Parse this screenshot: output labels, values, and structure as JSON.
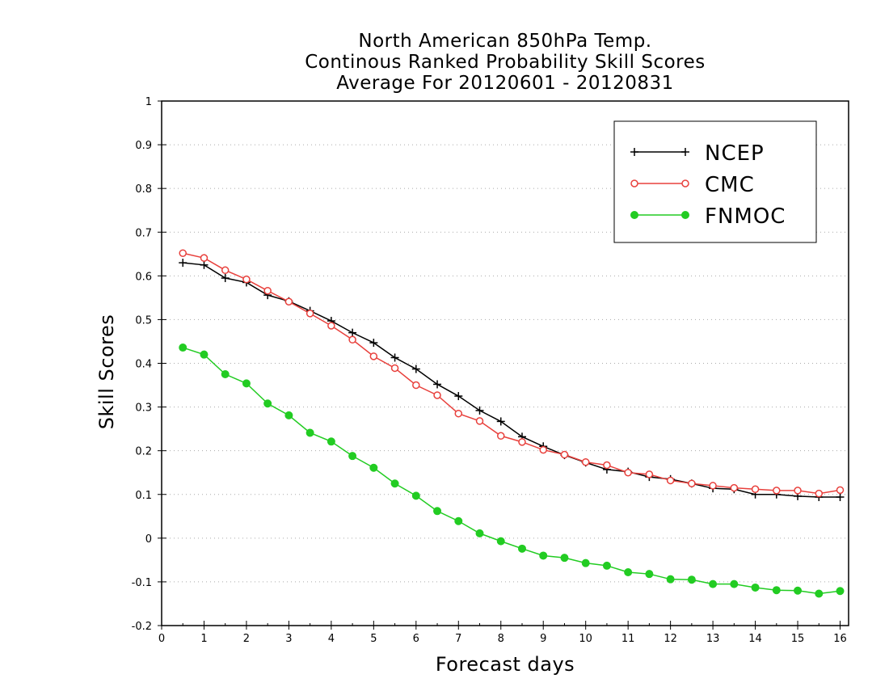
{
  "chart_data": {
    "type": "line",
    "title_lines": [
      "North American 850hPa Temp.",
      "Continous Ranked Probability Skill Scores",
      "Average For 20120601 - 20120831"
    ],
    "xlabel": "Forecast days",
    "ylabel": "Skill Scores",
    "xlim": [
      0,
      16.2
    ],
    "ylim": [
      -0.2,
      1
    ],
    "xticks": [
      0,
      1,
      2,
      3,
      4,
      5,
      6,
      7,
      8,
      9,
      10,
      11,
      12,
      13,
      14,
      15,
      16
    ],
    "yticks": [
      -0.2,
      -0.1,
      0,
      0.1,
      0.2,
      0.3,
      0.4,
      0.5,
      0.6,
      0.7,
      0.8,
      0.9,
      1
    ],
    "ytick_labels": [
      "-0.2",
      "-0.1",
      "0",
      "0.1",
      "0.2",
      "0.3",
      "0.4",
      "0.5",
      "0.6",
      "0.7",
      "0.8",
      "0.9",
      "1"
    ],
    "grid": "horizontal dotted",
    "legend_position": "top-right",
    "x": [
      0.5,
      1,
      1.5,
      2,
      2.5,
      3,
      3.5,
      4,
      4.5,
      5,
      5.5,
      6,
      6.5,
      7,
      7.5,
      8,
      8.5,
      9,
      9.5,
      10,
      10.5,
      11,
      11.5,
      12,
      12.5,
      13,
      13.5,
      14,
      14.5,
      15,
      15.5,
      16
    ],
    "series": [
      {
        "name": "NCEP",
        "color": "#000000",
        "marker": "plus",
        "values": [
          0.63,
          0.625,
          0.595,
          0.585,
          0.556,
          0.542,
          0.52,
          0.497,
          0.47,
          0.447,
          0.413,
          0.387,
          0.352,
          0.325,
          0.292,
          0.267,
          0.232,
          0.21,
          0.19,
          0.173,
          0.157,
          0.152,
          0.14,
          0.135,
          0.125,
          0.114,
          0.112,
          0.1,
          0.1,
          0.096,
          0.094,
          0.094
        ]
      },
      {
        "name": "CMC",
        "color": "#e8403c",
        "marker": "open-circle",
        "values": [
          0.652,
          0.641,
          0.613,
          0.592,
          0.566,
          0.541,
          0.514,
          0.486,
          0.454,
          0.416,
          0.389,
          0.35,
          0.327,
          0.285,
          0.268,
          0.234,
          0.22,
          0.202,
          0.191,
          0.174,
          0.167,
          0.15,
          0.146,
          0.132,
          0.125,
          0.12,
          0.115,
          0.112,
          0.109,
          0.109,
          0.102,
          0.11
        ]
      },
      {
        "name": "FNMOC",
        "color": "#22cc22",
        "marker": "filled-circle",
        "values": [
          0.436,
          0.42,
          0.375,
          0.354,
          0.308,
          0.281,
          0.241,
          0.221,
          0.188,
          0.161,
          0.125,
          0.097,
          0.062,
          0.039,
          0.011,
          -0.007,
          -0.024,
          -0.04,
          -0.045,
          -0.057,
          -0.063,
          -0.078,
          -0.082,
          -0.094,
          -0.095,
          -0.105,
          -0.105,
          -0.113,
          -0.119,
          -0.12,
          -0.127,
          -0.121
        ]
      }
    ]
  }
}
